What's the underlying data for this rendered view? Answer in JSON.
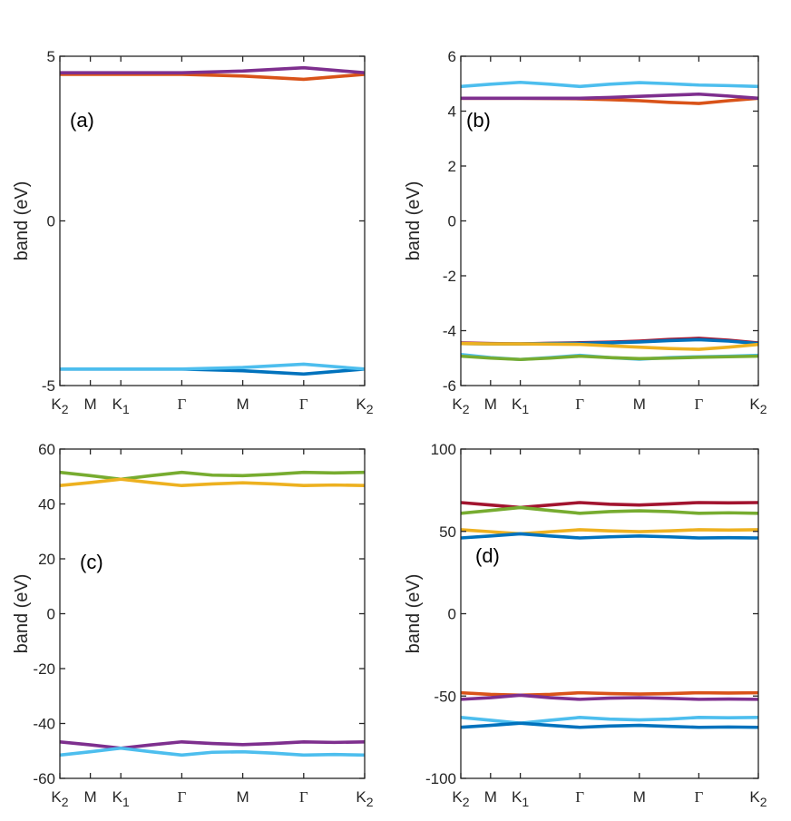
{
  "figure": {
    "colors": {
      "blue": "#0072BD",
      "orange": "#D95319",
      "yellow": "#EDB120",
      "purple": "#7E2F8E",
      "green": "#77AC30",
      "cyan": "#4DBEEE",
      "red": "#A2142F",
      "axis": "#262626"
    }
  },
  "chart_data": [
    {
      "type": "line",
      "panel_label": "(a)",
      "ylabel": "band (eV)",
      "ylim": [
        -5,
        5
      ],
      "yticks": [
        -5,
        0,
        5
      ],
      "xticks": [
        {
          "main": "K",
          "sub": "2",
          "x": 0
        },
        {
          "main": "M",
          "sub": "",
          "x": 1
        },
        {
          "main": "K",
          "sub": "1",
          "x": 2
        },
        {
          "main": "Γ",
          "sub": "",
          "x": 4
        },
        {
          "main": "M",
          "sub": "",
          "x": 6
        },
        {
          "main": "Γ",
          "sub": "",
          "x": 8
        },
        {
          "main": "K",
          "sub": "2",
          "x": 10
        }
      ],
      "x": [
        0,
        2,
        4,
        6,
        8,
        10
      ],
      "series": [
        {
          "color": "#0072BD",
          "values": [
            -4.5,
            -4.5,
            -4.5,
            -4.55,
            -4.65,
            -4.5
          ]
        },
        {
          "color": "#4DBEEE",
          "values": [
            -4.5,
            -4.5,
            -4.5,
            -4.45,
            -4.35,
            -4.5
          ]
        },
        {
          "color": "#D95319",
          "values": [
            4.45,
            4.45,
            4.45,
            4.4,
            4.3,
            4.45
          ]
        },
        {
          "color": "#7E2F8E",
          "values": [
            4.5,
            4.5,
            4.5,
            4.55,
            4.65,
            4.5
          ]
        }
      ]
    },
    {
      "type": "line",
      "panel_label": "(b)",
      "ylabel": "band (eV)",
      "ylim": [
        -6,
        6
      ],
      "yticks": [
        -6,
        -4,
        -2,
        0,
        2,
        4,
        6
      ],
      "xticks": [
        {
          "main": "K",
          "sub": "2",
          "x": 0
        },
        {
          "main": "M",
          "sub": "",
          "x": 1
        },
        {
          "main": "K",
          "sub": "1",
          "x": 2
        },
        {
          "main": "Γ",
          "sub": "",
          "x": 4
        },
        {
          "main": "M",
          "sub": "",
          "x": 6
        },
        {
          "main": "Γ",
          "sub": "",
          "x": 8
        },
        {
          "main": "K",
          "sub": "2",
          "x": 10
        }
      ],
      "x": [
        0,
        1,
        2,
        3,
        4,
        5,
        6,
        7,
        8,
        9,
        10
      ],
      "series": [
        {
          "color": "#A2142F",
          "values": [
            -4.45,
            -4.47,
            -4.48,
            -4.46,
            -4.44,
            -4.42,
            -4.38,
            -4.32,
            -4.28,
            -4.35,
            -4.45
          ]
        },
        {
          "color": "#0072BD",
          "values": [
            -4.47,
            -4.48,
            -4.48,
            -4.47,
            -4.46,
            -4.44,
            -4.41,
            -4.36,
            -4.33,
            -4.38,
            -4.47
          ]
        },
        {
          "color": "#EDB120",
          "values": [
            -4.47,
            -4.48,
            -4.48,
            -4.49,
            -4.5,
            -4.55,
            -4.6,
            -4.65,
            -4.68,
            -4.6,
            -4.5
          ]
        },
        {
          "color": "#4DBEEE",
          "values": [
            -4.87,
            -4.98,
            -5.05,
            -4.98,
            -4.9,
            -4.98,
            -5.04,
            -4.98,
            -4.95,
            -4.93,
            -4.9
          ]
        },
        {
          "color": "#77AC30",
          "values": [
            -4.93,
            -5.0,
            -5.05,
            -5.0,
            -4.93,
            -4.98,
            -5.02,
            -5.0,
            -4.97,
            -4.95,
            -4.93
          ]
        },
        {
          "color": "#D95319",
          "values": [
            4.47,
            4.47,
            4.47,
            4.46,
            4.45,
            4.42,
            4.38,
            4.32,
            4.28,
            4.38,
            4.47
          ]
        },
        {
          "color": "#7E2F8E",
          "values": [
            4.47,
            4.47,
            4.47,
            4.47,
            4.47,
            4.5,
            4.54,
            4.58,
            4.62,
            4.55,
            4.47
          ]
        },
        {
          "color": "#4DBEEE",
          "values": [
            4.9,
            4.98,
            5.05,
            4.98,
            4.9,
            4.98,
            5.04,
            5.0,
            4.95,
            4.93,
            4.9
          ]
        }
      ]
    },
    {
      "type": "line",
      "panel_label": "(c)",
      "ylabel": "band (eV)",
      "ylim": [
        -60,
        60
      ],
      "yticks": [
        -60,
        -40,
        -20,
        0,
        20,
        40,
        60
      ],
      "xticks": [
        {
          "main": "K",
          "sub": "2",
          "x": 0
        },
        {
          "main": "M",
          "sub": "",
          "x": 1
        },
        {
          "main": "K",
          "sub": "1",
          "x": 2
        },
        {
          "main": "Γ",
          "sub": "",
          "x": 4
        },
        {
          "main": "M",
          "sub": "",
          "x": 6
        },
        {
          "main": "Γ",
          "sub": "",
          "x": 8
        },
        {
          "main": "K",
          "sub": "2",
          "x": 10
        }
      ],
      "x": [
        0,
        1,
        2,
        3,
        4,
        5,
        6,
        7,
        8,
        9,
        10
      ],
      "series": [
        {
          "color": "#77AC30",
          "values": [
            51.5,
            50.3,
            49.0,
            50.3,
            51.5,
            50.5,
            50.3,
            50.8,
            51.5,
            51.3,
            51.5
          ]
        },
        {
          "color": "#EDB120",
          "values": [
            46.7,
            47.8,
            49.0,
            47.8,
            46.7,
            47.3,
            47.7,
            47.3,
            46.7,
            46.9,
            46.7
          ]
        },
        {
          "color": "#7E2F8E",
          "values": [
            -46.7,
            -47.8,
            -49.0,
            -47.8,
            -46.7,
            -47.3,
            -47.7,
            -47.3,
            -46.7,
            -46.9,
            -46.7
          ]
        },
        {
          "color": "#4DBEEE",
          "values": [
            -51.5,
            -50.3,
            -49.0,
            -50.3,
            -51.5,
            -50.5,
            -50.3,
            -50.8,
            -51.5,
            -51.3,
            -51.5
          ]
        }
      ]
    },
    {
      "type": "line",
      "panel_label": "(d)",
      "ylabel": "band (eV)",
      "ylim": [
        -100,
        100
      ],
      "yticks": [
        -100,
        -50,
        0,
        50,
        100
      ],
      "xticks": [
        {
          "main": "K",
          "sub": "2",
          "x": 0
        },
        {
          "main": "M",
          "sub": "",
          "x": 1
        },
        {
          "main": "K",
          "sub": "1",
          "x": 2
        },
        {
          "main": "Γ",
          "sub": "",
          "x": 4
        },
        {
          "main": "M",
          "sub": "",
          "x": 6
        },
        {
          "main": "Γ",
          "sub": "",
          "x": 8
        },
        {
          "main": "K",
          "sub": "2",
          "x": 10
        }
      ],
      "x": [
        0,
        1,
        2,
        3,
        4,
        5,
        6,
        7,
        8,
        9,
        10
      ],
      "series": [
        {
          "color": "#A2142F",
          "values": [
            67.5,
            66.0,
            64.5,
            66.0,
            67.5,
            66.5,
            66.0,
            66.7,
            67.5,
            67.3,
            67.5
          ]
        },
        {
          "color": "#77AC30",
          "values": [
            61.0,
            62.7,
            64.5,
            62.7,
            61.0,
            62.0,
            62.5,
            62.0,
            61.0,
            61.3,
            61.0
          ]
        },
        {
          "color": "#EDB120",
          "values": [
            51.0,
            49.8,
            48.5,
            49.8,
            51.0,
            50.3,
            49.8,
            50.3,
            51.0,
            50.8,
            51.0
          ]
        },
        {
          "color": "#0072BD",
          "values": [
            46.0,
            47.2,
            48.5,
            47.2,
            46.0,
            46.7,
            47.2,
            46.7,
            46.0,
            46.2,
            46.0
          ]
        },
        {
          "color": "#D95319",
          "values": [
            -48.0,
            -49.0,
            -49.5,
            -49.0,
            -48.0,
            -48.5,
            -48.8,
            -48.5,
            -48.0,
            -48.2,
            -48.0
          ]
        },
        {
          "color": "#7E2F8E",
          "values": [
            -52.0,
            -51.0,
            -49.5,
            -51.0,
            -52.0,
            -51.3,
            -51.0,
            -51.4,
            -52.0,
            -51.8,
            -52.0
          ]
        },
        {
          "color": "#4DBEEE",
          "values": [
            -63.0,
            -64.7,
            -66.5,
            -64.7,
            -63.0,
            -64.0,
            -64.5,
            -64.0,
            -63.0,
            -63.2,
            -63.0
          ]
        },
        {
          "color": "#0072BD",
          "values": [
            -69.0,
            -67.8,
            -66.5,
            -67.8,
            -69.0,
            -68.2,
            -67.8,
            -68.4,
            -69.0,
            -68.8,
            -69.0
          ]
        }
      ]
    }
  ]
}
